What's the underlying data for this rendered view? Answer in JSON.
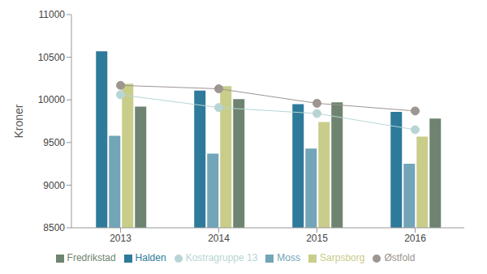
{
  "chart_data": {
    "type": "bar",
    "y_label": "Kroner",
    "categories": [
      "2013",
      "2014",
      "2015",
      "2016"
    ],
    "series": [
      {
        "name": "Halden",
        "type": "bar",
        "color": "#2e7a9a",
        "values": [
          10570,
          10110,
          9950,
          9860
        ]
      },
      {
        "name": "Moss",
        "type": "bar",
        "color": "#72a5b8",
        "values": [
          9580,
          9370,
          9430,
          9250
        ]
      },
      {
        "name": "Sarpsborg",
        "type": "bar",
        "color": "#c9cd8a",
        "values": [
          10190,
          10160,
          9740,
          9570
        ]
      },
      {
        "name": "Fredrikstad",
        "type": "bar",
        "color": "#6f8470",
        "values": [
          9920,
          10010,
          9970,
          9780
        ]
      },
      {
        "name": "Østfold",
        "type": "line",
        "marker": "circle",
        "color": "#9c9590",
        "values": [
          10170,
          10130,
          9960,
          9870
        ]
      },
      {
        "name": "Kostragruppe 13",
        "type": "line",
        "marker": "circle",
        "color": "#b8d5d5",
        "values": [
          10060,
          9910,
          9840,
          9650
        ]
      }
    ],
    "ylim": [
      8500,
      11000
    ],
    "yticks": [
      8500,
      9000,
      9500,
      10000,
      10500,
      11000
    ],
    "grid": false,
    "legend": "bottom"
  }
}
